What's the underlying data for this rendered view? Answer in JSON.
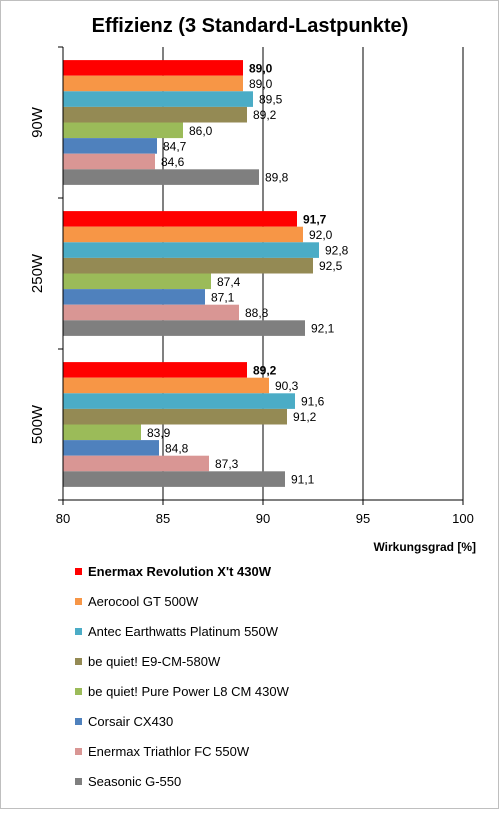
{
  "chart_data": {
    "type": "bar",
    "orientation": "horizontal",
    "title": "Effizienz (3 Standard-Lastpunkte)",
    "xlabel": "Wirkungsgrad [%]",
    "ylabel": "",
    "xlim": [
      80,
      100
    ],
    "xticks": [
      "80",
      "85",
      "90",
      "95",
      "100"
    ],
    "grid": true,
    "legend_position": "bottom",
    "categories": [
      "90W",
      "250W",
      "500W"
    ],
    "series": [
      {
        "name": "Enermax Revolution X't 430W",
        "color": "#ff0000",
        "bold": true,
        "values": [
          89.0,
          91.7,
          89.2
        ],
        "labels": [
          "89,0",
          "91,7",
          "89,2"
        ]
      },
      {
        "name": "Aerocool GT 500W",
        "color": "#f79646",
        "bold": false,
        "values": [
          89.0,
          92.0,
          90.3
        ],
        "labels": [
          "89,0",
          "92,0",
          "90,3"
        ]
      },
      {
        "name": "Antec Earthwatts Platinum 550W",
        "color": "#4bacc6",
        "bold": false,
        "values": [
          89.5,
          92.8,
          91.6
        ],
        "labels": [
          "89,5",
          "92,8",
          "91,6"
        ]
      },
      {
        "name": "be quiet! E9-CM-580W",
        "color": "#948a54",
        "bold": false,
        "values": [
          89.2,
          92.5,
          91.2
        ],
        "labels": [
          "89,2",
          "92,5",
          "91,2"
        ]
      },
      {
        "name": "be quiet! Pure Power L8 CM 430W",
        "color": "#9bbb59",
        "bold": false,
        "values": [
          86.0,
          87.4,
          83.9
        ],
        "labels": [
          "86,0",
          "87,4",
          "83,9"
        ]
      },
      {
        "name": "Corsair CX430",
        "color": "#4f81bd",
        "bold": false,
        "values": [
          84.7,
          87.1,
          84.8
        ],
        "labels": [
          "84,7",
          "87,1",
          "84,8"
        ]
      },
      {
        "name": "Enermax Triathlor FC 550W",
        "color": "#d99694",
        "bold": false,
        "values": [
          84.6,
          88.8,
          87.3
        ],
        "labels": [
          "84,6",
          "88,8",
          "87,3"
        ]
      },
      {
        "name": "Seasonic G-550",
        "color": "#7f7f7f",
        "bold": false,
        "values": [
          89.8,
          92.1,
          91.1
        ],
        "labels": [
          "89,8",
          "92,1",
          "91,1"
        ]
      }
    ]
  }
}
